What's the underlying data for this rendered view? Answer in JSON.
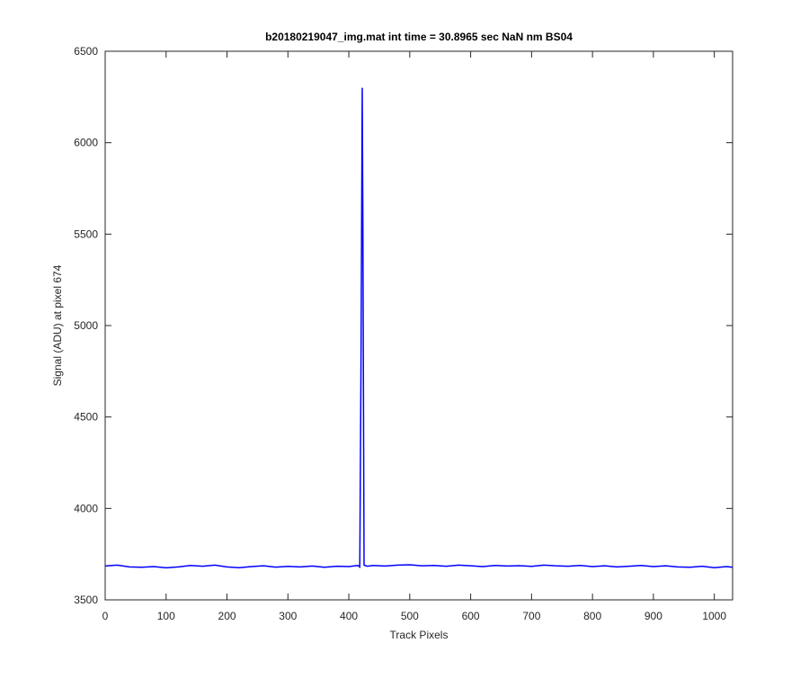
{
  "chart_data": {
    "type": "line",
    "title": "b20180219047_img.mat int time = 30.8965 sec  NaN nm BS04",
    "x_label": "Track Pixels",
    "y_label": "Signal (ADU) at pixel 674",
    "xlim": [
      0,
      1030
    ],
    "ylim": [
      3500,
      6500
    ],
    "xticks": [
      0,
      100,
      200,
      300,
      400,
      500,
      600,
      700,
      800,
      900,
      1000
    ],
    "yticks": [
      3500,
      4000,
      4500,
      5000,
      5500,
      6000,
      6500
    ],
    "grid": false,
    "x": [
      0,
      20,
      40,
      60,
      80,
      100,
      120,
      140,
      160,
      180,
      200,
      220,
      240,
      260,
      280,
      300,
      320,
      340,
      360,
      380,
      400,
      410,
      415,
      418,
      420,
      422,
      423,
      425,
      430,
      440,
      460,
      480,
      500,
      520,
      540,
      560,
      580,
      600,
      620,
      640,
      660,
      680,
      700,
      720,
      740,
      760,
      780,
      800,
      820,
      840,
      860,
      880,
      900,
      920,
      940,
      960,
      980,
      1000,
      1020,
      1030
    ],
    "series": [
      {
        "color": "#0000ff",
        "values": [
          3685,
          3690,
          3680,
          3678,
          3682,
          3675,
          3680,
          3688,
          3684,
          3690,
          3680,
          3676,
          3682,
          3686,
          3679,
          3683,
          3680,
          3685,
          3678,
          3684,
          3682,
          3686,
          3688,
          3680,
          4800,
          6300,
          5600,
          3690,
          3684,
          3688,
          3685,
          3690,
          3692,
          3686,
          3688,
          3684,
          3690,
          3686,
          3682,
          3688,
          3685,
          3687,
          3683,
          3690,
          3686,
          3684,
          3688,
          3682,
          3686,
          3680,
          3684,
          3688,
          3682,
          3686,
          3680,
          3678,
          3684,
          3676,
          3682,
          3678
        ]
      }
    ]
  }
}
